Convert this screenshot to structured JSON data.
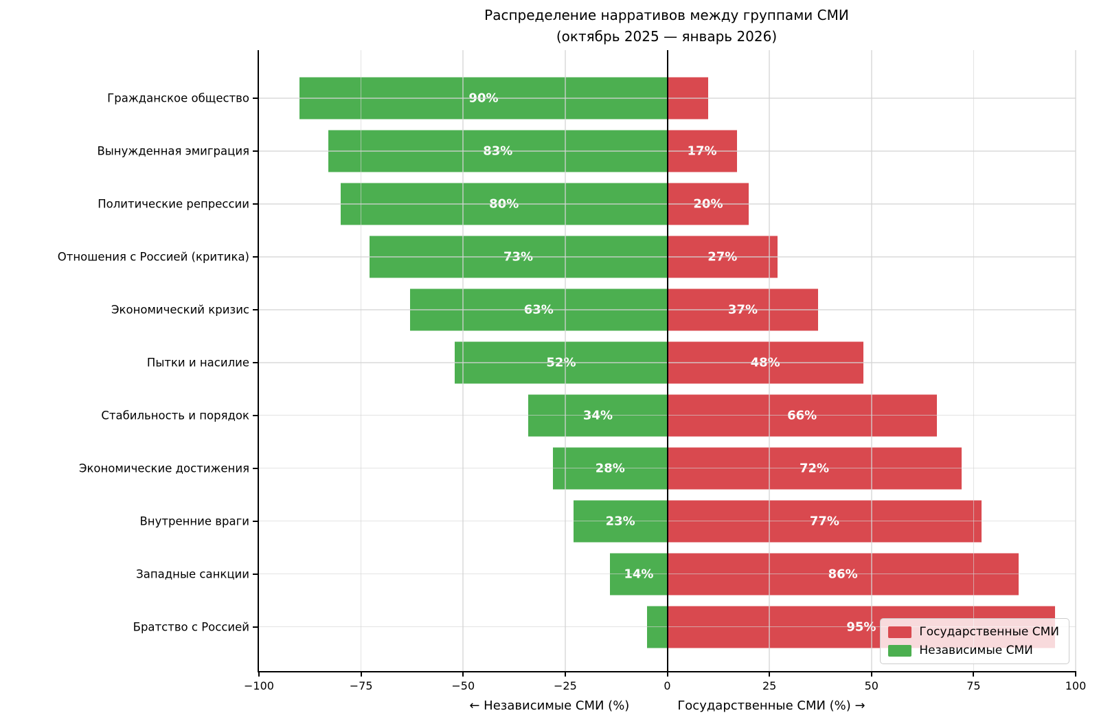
{
  "title": {
    "line1": "Распределение нарративов между группами СМИ",
    "line2": "(октябрь 2025 — январь 2026)"
  },
  "colors": {
    "state": "#d9494f",
    "independent": "#4caf50",
    "grid": "#d4d4d4",
    "axis": "#000000",
    "bar_label": "#ffffff"
  },
  "legend": {
    "items": [
      {
        "label": "Государственные СМИ",
        "color_key": "state"
      },
      {
        "label": "Независимые СМИ",
        "color_key": "independent"
      }
    ]
  },
  "x_axis": {
    "label_left": "← Независимые СМИ (%)",
    "label_right": "Государственные СМИ (%) →",
    "ticks": [
      "−100",
      "−75",
      "−50",
      "−25",
      "0",
      "25",
      "50",
      "75",
      "100"
    ],
    "tick_values": [
      -100,
      -75,
      -50,
      -25,
      0,
      25,
      50,
      75,
      100
    ]
  },
  "chart_data": {
    "type": "bar",
    "orientation": "horizontal-diverging",
    "title": "Распределение нарративов между группами СМИ (октябрь 2025 — январь 2026)",
    "xlabel": "← Независимые СМИ (%)   Государственные СМИ (%) →",
    "xlim": [
      -100,
      100
    ],
    "grid": true,
    "legend_position": "lower right",
    "categories": [
      "Гражданское общество",
      "Вынужденная эмиграция",
      "Политические репрессии",
      "Отношения с Россией (критика)",
      "Экономический кризис",
      "Пытки и насилие",
      "Стабильность и порядок",
      "Экономические достижения",
      "Внутренние враги",
      "Западные санкции",
      "Братство с Россией"
    ],
    "series": [
      {
        "name": "Независимые СМИ",
        "direction": "left",
        "color": "#4caf50",
        "values": [
          90,
          83,
          80,
          73,
          63,
          52,
          34,
          28,
          23,
          14,
          5
        ],
        "labels": [
          "90%",
          "83%",
          "80%",
          "73%",
          "63%",
          "52%",
          "34%",
          "28%",
          "23%",
          "14%",
          ""
        ]
      },
      {
        "name": "Государственные СМИ",
        "direction": "right",
        "color": "#d9494f",
        "values": [
          10,
          17,
          20,
          27,
          37,
          48,
          66,
          72,
          77,
          86,
          95
        ],
        "labels": [
          "",
          "17%",
          "20%",
          "27%",
          "37%",
          "48%",
          "66%",
          "72%",
          "77%",
          "86%",
          "95%"
        ]
      }
    ]
  }
}
